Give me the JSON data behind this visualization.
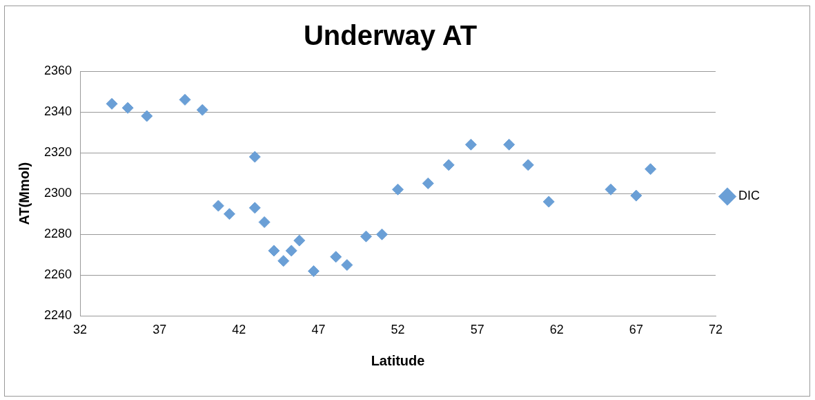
{
  "chart_data": {
    "type": "scatter",
    "title": "Underway AT",
    "xlabel": "Latitude",
    "ylabel": "AT(Mmol)",
    "x": [
      34.0,
      35.0,
      36.2,
      38.6,
      39.7,
      40.7,
      41.4,
      43.0,
      43.0,
      43.6,
      44.2,
      44.8,
      45.3,
      45.8,
      46.7,
      48.1,
      48.8,
      50.0,
      51.0,
      52.0,
      53.9,
      55.2,
      56.6,
      59.0,
      60.2,
      61.5,
      65.4,
      67.0,
      67.9
    ],
    "series": [
      {
        "name": "DIC",
        "color": "#6a9fd6",
        "values": [
          2344,
          2342,
          2338,
          2346,
          2341,
          2294,
          2290,
          2318,
          2293,
          2286,
          2272,
          2267,
          2272,
          2277,
          2262,
          2269,
          2265,
          2279,
          2280,
          2302,
          2305,
          2314,
          2324,
          2324,
          2314,
          2296,
          2302,
          2299,
          2312
        ]
      }
    ],
    "xlim": [
      32,
      72
    ],
    "xticks": [
      32,
      37,
      42,
      47,
      52,
      57,
      62,
      67,
      72
    ],
    "ylim": [
      2240,
      2360
    ],
    "yticks": [
      2240,
      2260,
      2280,
      2300,
      2320,
      2340,
      2360
    ],
    "grid": "y",
    "legend": "right",
    "marker": "diamond"
  }
}
